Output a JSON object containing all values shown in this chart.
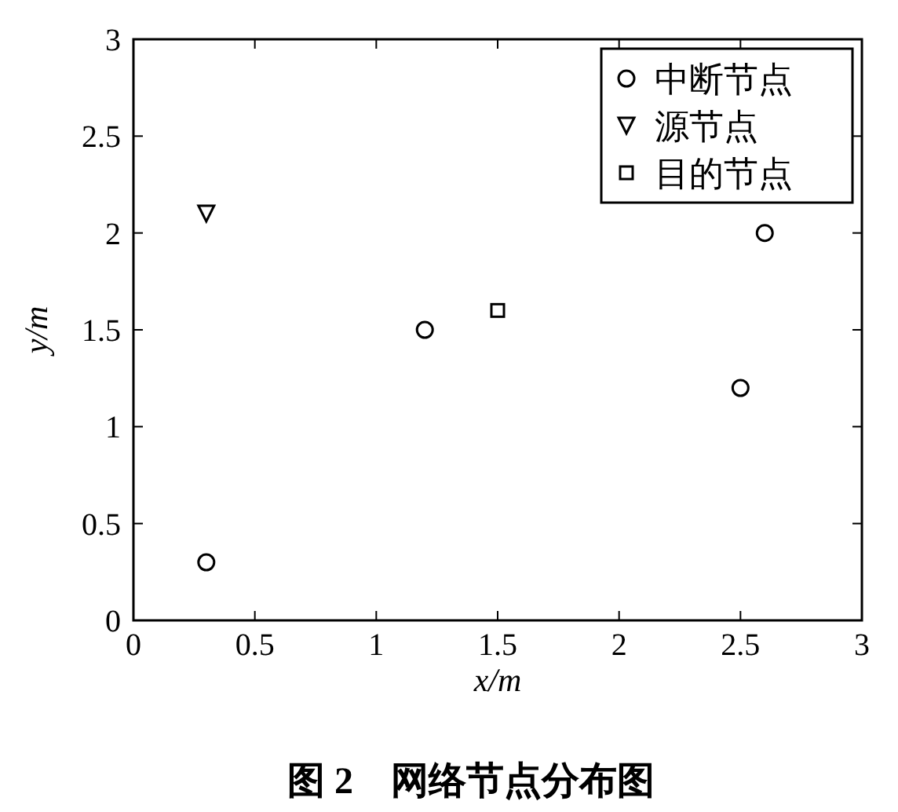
{
  "chart_data": {
    "type": "scatter",
    "xlabel": "x/m",
    "ylabel": "y/m",
    "xlim": [
      0,
      3
    ],
    "ylim": [
      0,
      3
    ],
    "xticks": [
      0,
      0.5,
      1,
      1.5,
      2,
      2.5,
      3
    ],
    "yticks": [
      0,
      0.5,
      1,
      1.5,
      2,
      2.5,
      3
    ],
    "grid": false,
    "legend": "top right",
    "series": [
      {
        "name": "中断节点",
        "color": "#000000",
        "marker": "circle",
        "x": [
          0.3,
          1.2,
          2.5,
          2.6
        ],
        "values": [
          0.3,
          1.5,
          1.2,
          2.0
        ]
      },
      {
        "name": "源节点",
        "color": "#000000",
        "marker": "triangle",
        "x": [
          0.3
        ],
        "values": [
          2.1
        ]
      },
      {
        "name": "目的节点",
        "color": "#000000",
        "marker": "square",
        "x": [
          1.5
        ],
        "values": [
          1.6
        ]
      }
    ],
    "annotations": [
      "图 2　网络节点分布图"
    ]
  }
}
